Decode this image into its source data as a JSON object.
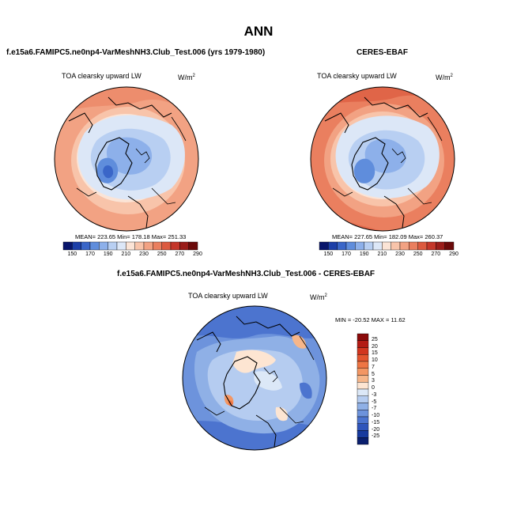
{
  "main_title": "ANN",
  "panels": [
    {
      "title": "f.e15a6.FAMIPC5.ne0np4-VarMeshNH3.Club_Test.006 (yrs 1979-1980)",
      "variable": "TOA clearsky upward LW",
      "units_base": "W/m",
      "units_exp": "2",
      "stats": "MEAN= 223.65  Min= 178.18  Max= 251.33",
      "colorbar_labels": [
        "150",
        "170",
        "190",
        "210",
        "230",
        "250",
        "270",
        "290"
      ]
    },
    {
      "title": "CERES-EBAF",
      "variable": "TOA clearsky upward LW",
      "units_base": "W/m",
      "units_exp": "2",
      "stats": "MEAN= 227.65  Min= 182.09  Max= 260.37",
      "colorbar_labels": [
        "150",
        "170",
        "190",
        "210",
        "230",
        "250",
        "270",
        "290"
      ]
    },
    {
      "title": "f.e15a6.FAMIPC5.ne0np4-VarMeshNH3.Club_Test.006 - CERES-EBAF",
      "variable": "TOA clearsky upward LW",
      "units_base": "W/m",
      "units_exp": "2",
      "stats": "MIN = -20.52 MAX =  11.62",
      "colorbar_labels": [
        "25",
        "20",
        "15",
        "10",
        "7",
        "5",
        "3",
        "0",
        "-3",
        "-5",
        "-7",
        "-10",
        "-15",
        "-20",
        "-25"
      ]
    }
  ],
  "colors": {
    "abs_scale": [
      "#08156b",
      "#1c3fa8",
      "#3a66c8",
      "#5f8ddc",
      "#8db0ea",
      "#b8cff2",
      "#dce7f7",
      "#fbe4d6",
      "#f8c4aa",
      "#f2a283",
      "#ea7f5f",
      "#dc5a3f",
      "#c4372a",
      "#9a1d1a",
      "#6b0a0a"
    ],
    "diff_scale": [
      "#8b0a0a",
      "#b31b14",
      "#d2361f",
      "#e3552f",
      "#ee7544",
      "#f39663",
      "#f6b68a",
      "#fde5d2",
      "#dce8f7",
      "#b5ccf0",
      "#8fb0e6",
      "#6d93dc",
      "#4c74cf",
      "#2f55bb",
      "#173a9e",
      "#0a1f6e"
    ]
  }
}
